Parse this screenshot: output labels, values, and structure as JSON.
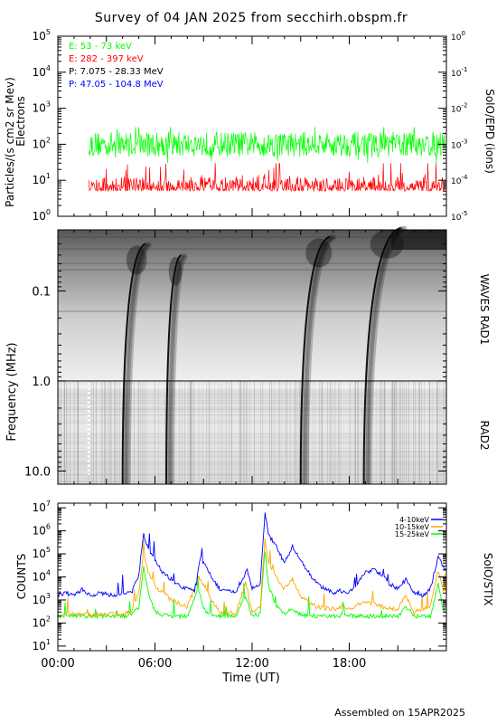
{
  "title": "Survey of 04 JAN 2025 from secchirh.obspm.fr",
  "footer": "Assembled on 15APR2025",
  "colors": {
    "green": "#00ff00",
    "red": "#ff0000",
    "blue": "#0000ff",
    "orange": "#ffa500",
    "black": "#000000"
  },
  "panels": {
    "particles": {
      "ylabel_line1": "Particles/(s cm2 sr Mev)",
      "ylabel_line2": "Electrons",
      "right_label": "SolO/EPD (ions)",
      "left_ticks": [
        {
          "b": "10",
          "e": "0"
        },
        {
          "b": "10",
          "e": "1"
        },
        {
          "b": "10",
          "e": "2"
        },
        {
          "b": "10",
          "e": "3"
        },
        {
          "b": "10",
          "e": "4"
        },
        {
          "b": "10",
          "e": "5"
        }
      ],
      "right_ticks": [
        {
          "b": "10",
          "e": "-5"
        },
        {
          "b": "10",
          "e": "-4"
        },
        {
          "b": "10",
          "e": "-3"
        },
        {
          "b": "10",
          "e": "-2"
        },
        {
          "b": "10",
          "e": "-1"
        },
        {
          "b": "10",
          "e": "0"
        }
      ],
      "legend": [
        {
          "label": "E: 53 - 73 keV",
          "color": "#00ff00"
        },
        {
          "label": "E: 282 - 397 keV",
          "color": "#ff0000"
        },
        {
          "label": "P: 7.075 - 28.33 MeV",
          "color": "#000000"
        },
        {
          "label": "P: 47.05 - 104.8 MeV",
          "color": "#0000ff"
        }
      ]
    },
    "radio": {
      "ylabel": "Frequency (MHz)",
      "right_label_top": "WAVES RAD1",
      "right_label_bottom": "RAD2",
      "ticks": [
        "0.1",
        "1.0",
        "10.0"
      ]
    },
    "xray": {
      "ylabel": "COUNTS",
      "right_label": "SolO/STIX",
      "ticks": [
        {
          "b": "10",
          "e": "1"
        },
        {
          "b": "10",
          "e": "2"
        },
        {
          "b": "10",
          "e": "3"
        },
        {
          "b": "10",
          "e": "4"
        },
        {
          "b": "10",
          "e": "5"
        },
        {
          "b": "10",
          "e": "6"
        },
        {
          "b": "10",
          "e": "7"
        }
      ],
      "legend": [
        {
          "label": "4-10keV",
          "color": "#0000ff"
        },
        {
          "label": "10-15keV",
          "color": "#ffa500"
        },
        {
          "label": "15-25keV",
          "color": "#00ff00"
        }
      ]
    }
  },
  "x_axis": {
    "label": "Time (UT)",
    "ticks": [
      "00:00",
      "06:00",
      "12:00",
      "18:00"
    ]
  },
  "chart_data": [
    {
      "type": "line",
      "panel": "SolO/EPD",
      "x_range_hours": [
        0,
        24
      ],
      "y_scale": "log",
      "ylim": [
        1,
        100000
      ],
      "series": [
        {
          "name": "E: 53 - 73 keV",
          "color": "#00ff00",
          "level": 100,
          "range": [
            30,
            300
          ]
        },
        {
          "name": "E: 282 - 397 keV",
          "color": "#ff0000",
          "level": 8,
          "range": [
            4,
            30
          ]
        }
      ]
    },
    {
      "type": "heatmap",
      "panel": "WAVES RAD1 / RAD2",
      "y_scale": "log",
      "ylim_mhz": [
        0.02,
        14
      ],
      "bursts": [
        {
          "start_h": 4.0,
          "end_h": 5.4,
          "low_mhz": 16,
          "high_mhz": 0.03
        },
        {
          "start_h": 6.7,
          "end_h": 7.6,
          "low_mhz": 16,
          "high_mhz": 0.04
        },
        {
          "start_h": 15.0,
          "end_h": 16.8,
          "low_mhz": 14,
          "high_mhz": 0.025
        },
        {
          "start_h": 18.9,
          "end_h": 21.2,
          "low_mhz": 14,
          "high_mhz": 0.02
        }
      ]
    },
    {
      "type": "line",
      "panel": "SolO/STIX",
      "x_range_hours": [
        0,
        24
      ],
      "y_scale": "log",
      "ylim": [
        10,
        10000000
      ],
      "series": [
        {
          "name": "4-10keV",
          "color": "#0000ff",
          "points": [
            [
              0,
              1500
            ],
            [
              0.5,
              2000
            ],
            [
              1,
              1500
            ],
            [
              1.5,
              3000
            ],
            [
              2,
              1500
            ],
            [
              2.5,
              2000
            ],
            [
              3,
              1800
            ],
            [
              3.5,
              1500
            ],
            [
              4,
              2000
            ],
            [
              4.6,
              2500
            ],
            [
              5,
              12000
            ],
            [
              5.3,
              800000
            ],
            [
              5.6,
              150000
            ],
            [
              6,
              50000
            ],
            [
              6.5,
              15000
            ],
            [
              7,
              8000
            ],
            [
              7.5,
              4000
            ],
            [
              8,
              3000
            ],
            [
              8.5,
              2500
            ],
            [
              8.8,
              80000
            ],
            [
              9,
              40000
            ],
            [
              9.5,
              10000
            ],
            [
              10,
              3000
            ],
            [
              10.5,
              2500
            ],
            [
              11,
              2000
            ],
            [
              11.7,
              20000
            ],
            [
              12,
              3000
            ],
            [
              12.5,
              5000
            ],
            [
              12.8,
              6000000
            ],
            [
              13,
              700000
            ],
            [
              13.5,
              200000
            ],
            [
              14,
              40000
            ],
            [
              14.5,
              200000
            ],
            [
              15,
              60000
            ],
            [
              15.5,
              15000
            ],
            [
              16,
              5000
            ],
            [
              17,
              2000
            ],
            [
              17.5,
              2500
            ],
            [
              18,
              2200
            ],
            [
              18.5,
              5000
            ],
            [
              19,
              15000
            ],
            [
              19.5,
              20000
            ],
            [
              20,
              12000
            ],
            [
              20.5,
              5000
            ],
            [
              21,
              3000
            ],
            [
              21.5,
              8000
            ],
            [
              22,
              2000
            ],
            [
              22.5,
              1500
            ],
            [
              23,
              3000
            ],
            [
              23.5,
              80000
            ],
            [
              23.8,
              30000
            ],
            [
              24,
              20000
            ]
          ]
        },
        {
          "name": "10-15keV",
          "color": "#ffa500",
          "points": [
            [
              0,
              200
            ],
            [
              1,
              250
            ],
            [
              2,
              220
            ],
            [
              3,
              250
            ],
            [
              4,
              250
            ],
            [
              4.5,
              300
            ],
            [
              5,
              2000
            ],
            [
              5.3,
              100000
            ],
            [
              5.6,
              15000
            ],
            [
              6,
              4000
            ],
            [
              6.5,
              2000
            ],
            [
              7,
              1000
            ],
            [
              7.5,
              700
            ],
            [
              8,
              500
            ],
            [
              8.7,
              10000
            ],
            [
              9,
              5000
            ],
            [
              9.5,
              1000
            ],
            [
              10,
              300
            ],
            [
              11,
              250
            ],
            [
              11.6,
              6000
            ],
            [
              12,
              300
            ],
            [
              12.5,
              500
            ],
            [
              12.8,
              400000
            ],
            [
              13,
              50000
            ],
            [
              13.5,
              10000
            ],
            [
              14,
              3000
            ],
            [
              14.5,
              8000
            ],
            [
              15,
              1500
            ],
            [
              15.5,
              800
            ],
            [
              16,
              500
            ],
            [
              17,
              400
            ],
            [
              17.5,
              500
            ],
            [
              18,
              400
            ],
            [
              18.5,
              600
            ],
            [
              19,
              800
            ],
            [
              19.5,
              700
            ],
            [
              20,
              500
            ],
            [
              21,
              400
            ],
            [
              21.5,
              1500
            ],
            [
              22,
              300
            ],
            [
              23,
              500
            ],
            [
              23.5,
              20000
            ],
            [
              23.8,
              3000
            ],
            [
              24,
              2000
            ]
          ]
        },
        {
          "name": "15-25keV",
          "color": "#00ff00",
          "points": [
            [
              0,
              200
            ],
            [
              1,
              200
            ],
            [
              2,
              200
            ],
            [
              3,
              200
            ],
            [
              4,
              200
            ],
            [
              4.5,
              200
            ],
            [
              5,
              500
            ],
            [
              5.3,
              30000
            ],
            [
              5.6,
              2000
            ],
            [
              6,
              300
            ],
            [
              6.5,
              220
            ],
            [
              7,
              200
            ],
            [
              8,
              200
            ],
            [
              8.7,
              3000
            ],
            [
              9,
              400
            ],
            [
              9.5,
              220
            ],
            [
              10,
              200
            ],
            [
              11,
              200
            ],
            [
              11.6,
              1500
            ],
            [
              12,
              200
            ],
            [
              12.5,
              250
            ],
            [
              12.8,
              150000
            ],
            [
              13,
              5000
            ],
            [
              13.5,
              500
            ],
            [
              14,
              250
            ],
            [
              14.5,
              400
            ],
            [
              15,
              220
            ],
            [
              16,
              200
            ],
            [
              17,
              200
            ],
            [
              18,
              200
            ],
            [
              19,
              200
            ],
            [
              20,
              200
            ],
            [
              21,
              200
            ],
            [
              21.5,
              500
            ],
            [
              22,
              200
            ],
            [
              23,
              200
            ],
            [
              23.5,
              5000
            ],
            [
              23.8,
              400
            ],
            [
              24,
              300
            ]
          ]
        }
      ]
    }
  ]
}
